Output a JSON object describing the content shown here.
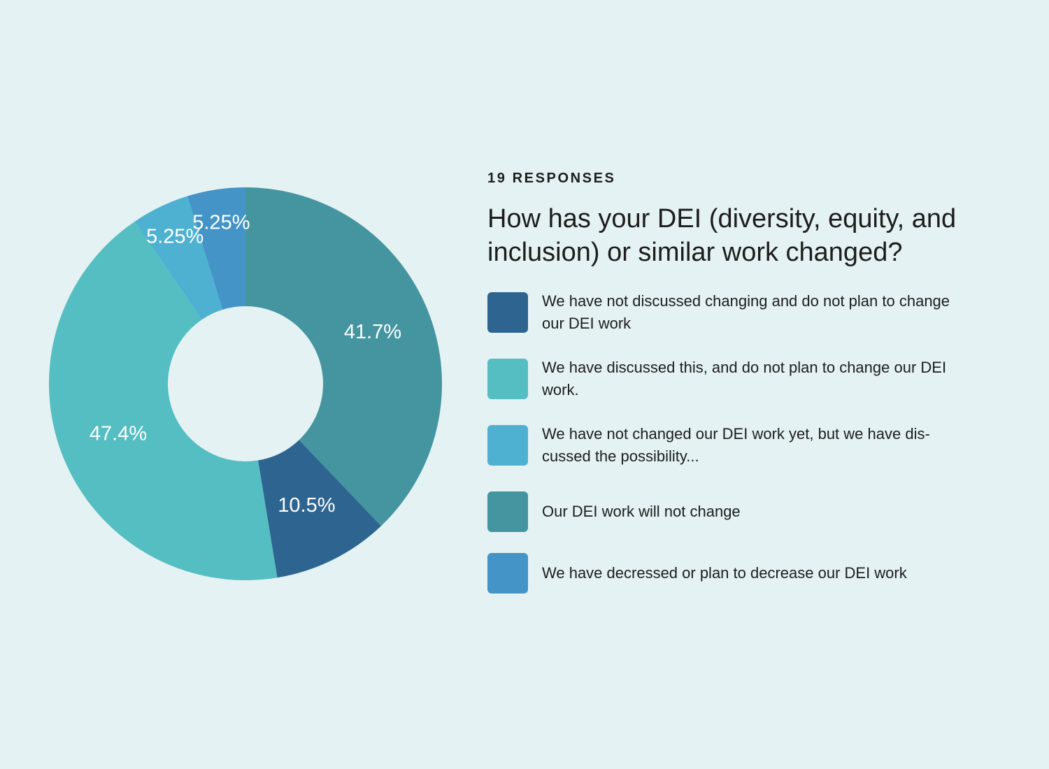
{
  "header": {
    "responses": "19 RESPONSES",
    "title": "How has your DEI (diversity, equity, and inclusion) or similar work changed?"
  },
  "chart_data": {
    "type": "pie",
    "donut": true,
    "title": "How has your DEI (diversity, equity, and inclusion) or similar work changed?",
    "responses_label": "19 RESPONSES",
    "slices": [
      {
        "name": "Our DEI work will not change",
        "value": 41.7,
        "label": "41.7%",
        "color": "#4595a0"
      },
      {
        "name": "We have not discussed changing and do not plan to change our DEI work",
        "value": 10.5,
        "label": "10.5%",
        "color": "#2e6490"
      },
      {
        "name": "We have discussed this, and do not plan to change our DEI work.",
        "value": 47.4,
        "label": "47.4%",
        "color": "#55bec3"
      },
      {
        "name": "We have not changed our DEI work yet, but we have dis-cussed the possibility...",
        "value": 5.25,
        "label": "5.25%",
        "color": "#4fb1d2"
      },
      {
        "name": "We have decressed or plan to decrease our DEI work",
        "value": 5.25,
        "label": "5.25%",
        "color": "#4494c8"
      }
    ],
    "legend": [
      {
        "label": "We have not discussed changing and do not plan to change our DEI work",
        "color": "#2e6490"
      },
      {
        "label": "We have discussed this, and do not plan to change our DEI work.",
        "color": "#55bec3"
      },
      {
        "label": "We have not changed our DEI work yet, but we have dis-cussed the possibility...",
        "color": "#4fb1d2"
      },
      {
        "label": "Our DEI work will not change",
        "color": "#4595a0"
      },
      {
        "label": "We have decressed or plan to decrease our DEI work",
        "color": "#4494c8"
      }
    ],
    "legend_position": "right"
  }
}
